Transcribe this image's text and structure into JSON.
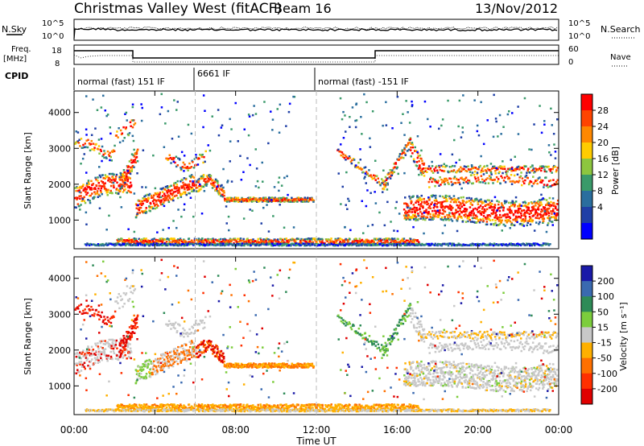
{
  "header": {
    "station": "Christmas Valley West (fitACF)",
    "beam": "Beam 16",
    "date": "13/Nov/2012"
  },
  "top_panels": {
    "nsky_label": "N.Sky",
    "noise_ticks": [
      "10^5",
      "10^0"
    ],
    "nsearch_label": "N.Search",
    "freq_label": "Freq.",
    "freq_unit": "[MHz]",
    "freq_ticks": [
      "18",
      "8"
    ],
    "nave_ticks": [
      "60",
      "0"
    ],
    "nave_label": "Nave",
    "cpid_label": "CPID",
    "cpid_segments": [
      {
        "label": "normal (fast) 151 IF",
        "start_h": 0,
        "end_h": 6
      },
      {
        "label": "6661 IF",
        "start_h": 6,
        "end_h": 12
      },
      {
        "label": "normal (fast) -151 IF",
        "start_h": 12,
        "end_h": 24
      }
    ]
  },
  "chart_data": [
    {
      "type": "heatmap",
      "panel": "power",
      "ylabel": "Slant Range [km]",
      "xlabel": "Time UT",
      "xlim": [
        0,
        24
      ],
      "ylim": [
        200,
        4600
      ],
      "y_ticks": [
        1000,
        2000,
        3000,
        4000
      ],
      "x_ticks": [
        "00:00",
        "04:00",
        "08:00",
        "12:00",
        "16:00",
        "20:00",
        "00:00"
      ],
      "colorbar": {
        "label": "Power [dB]",
        "ticks": [
          "28",
          "24",
          "20",
          "16",
          "12",
          "8",
          "4"
        ],
        "colors": [
          "#ff0000",
          "#ff4400",
          "#ff8800",
          "#ffcc00",
          "#8dc63f",
          "#3a9a6a",
          "#2a6e9e",
          "#1f3fa6",
          "#0000ff"
        ]
      }
    },
    {
      "type": "heatmap",
      "panel": "velocity",
      "ylabel": "Slant Range [km]",
      "xlabel": "Time UT",
      "xlim": [
        0,
        24
      ],
      "ylim": [
        200,
        4600
      ],
      "y_ticks": [
        1000,
        2000,
        3000,
        4000
      ],
      "x_ticks": [
        "00:00",
        "04:00",
        "08:00",
        "12:00",
        "16:00",
        "20:00",
        "00:00"
      ],
      "colorbar": {
        "label": "Velocity [m s⁻¹]",
        "ticks": [
          "200",
          "100",
          "50",
          "15",
          "-15",
          "-50",
          "-100",
          "-200"
        ],
        "colors": [
          "#1a1aa8",
          "#3a6ab0",
          "#2e8b57",
          "#7ccd3c",
          "#c8c8c8",
          "#ffb000",
          "#ff7000",
          "#ff3000",
          "#e00000"
        ]
      }
    }
  ],
  "x_axis_title": "Time UT"
}
